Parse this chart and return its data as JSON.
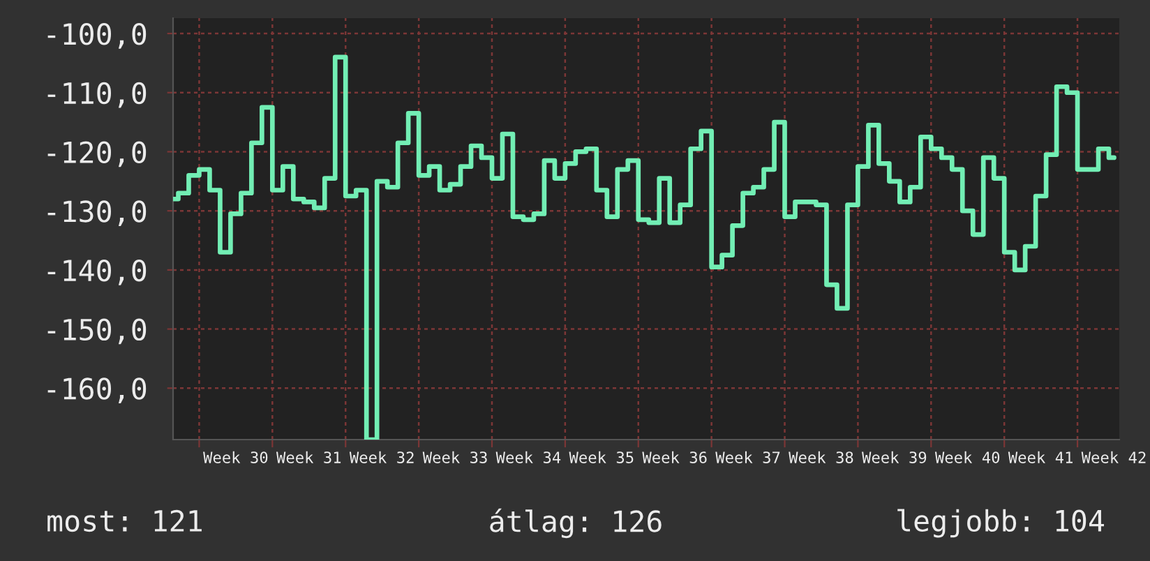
{
  "chart_data": {
    "type": "step",
    "categories": [
      null,
      null,
      null,
      null,
      null,
      null,
      "Week 30",
      null,
      null,
      null,
      null,
      null,
      null,
      "Week 31",
      null,
      null,
      null,
      null,
      null,
      null,
      "Week 32",
      null,
      null,
      null,
      null,
      null,
      null,
      "Week 33",
      null,
      null,
      null,
      null,
      null,
      null,
      "Week 34",
      null,
      null,
      null,
      null,
      null,
      null,
      "Week 35",
      null,
      null,
      null,
      null,
      null,
      null,
      "Week 36",
      null,
      null,
      null,
      null,
      null,
      null,
      "Week 37",
      null,
      null,
      null,
      null,
      null,
      null,
      "Week 38",
      null,
      null,
      null,
      null,
      null,
      null,
      "Week 39",
      null,
      null,
      null,
      null,
      null,
      null,
      "Week 40",
      null,
      null,
      null,
      null,
      null,
      null,
      "Week 41",
      null,
      null,
      null,
      null,
      null,
      null,
      "Week 42"
    ],
    "values": [
      -128,
      -127,
      -124,
      -123,
      -126.5,
      -137,
      -130.5,
      -127,
      -118.5,
      -112.5,
      -126.5,
      -122.5,
      -128,
      -128.5,
      -129.5,
      -124.5,
      -104,
      -127.5,
      -126.5,
      -168.7,
      -125,
      -126,
      -118.5,
      -113.5,
      -124,
      -122.5,
      -126.5,
      -125.5,
      -122.5,
      -119,
      -121,
      -124.5,
      -117,
      -131,
      -131.5,
      -130.5,
      -121.5,
      -124.5,
      -122,
      -120,
      -119.5,
      -126.5,
      -131,
      -123,
      -121.5,
      -131.5,
      -132,
      -124.5,
      -132,
      -129,
      -119.5,
      -116.5,
      -139.5,
      -137.5,
      -132.5,
      -127,
      -126,
      -123,
      -115,
      -131,
      -128.5,
      -128.5,
      -129,
      -142.5,
      -146.5,
      -129,
      -122.5,
      -115.5,
      -122,
      -125,
      -128.5,
      -126,
      -117.5,
      -119.5,
      -121,
      -123,
      -130,
      -134,
      -121,
      -124.5,
      -137,
      -140,
      -136,
      -127.5,
      -120.5,
      -109,
      -110,
      -123,
      -123,
      -119.5,
      -121
    ],
    "color": "#72eeb4",
    "ylim": [
      -168.7,
      -97.4
    ],
    "yticks": [
      {
        "value": -100,
        "label": "-100,0"
      },
      {
        "value": -110,
        "label": "-110,0"
      },
      {
        "value": -120,
        "label": "-120,0"
      },
      {
        "value": -130,
        "label": "-130,0"
      },
      {
        "value": -140,
        "label": "-140,0"
      },
      {
        "value": -150,
        "label": "-150,0"
      },
      {
        "value": -160,
        "label": "-160,0"
      }
    ],
    "grid": true,
    "annotations": [
      "most: 121",
      "átlag: 126",
      "legjobb: 104"
    ]
  }
}
